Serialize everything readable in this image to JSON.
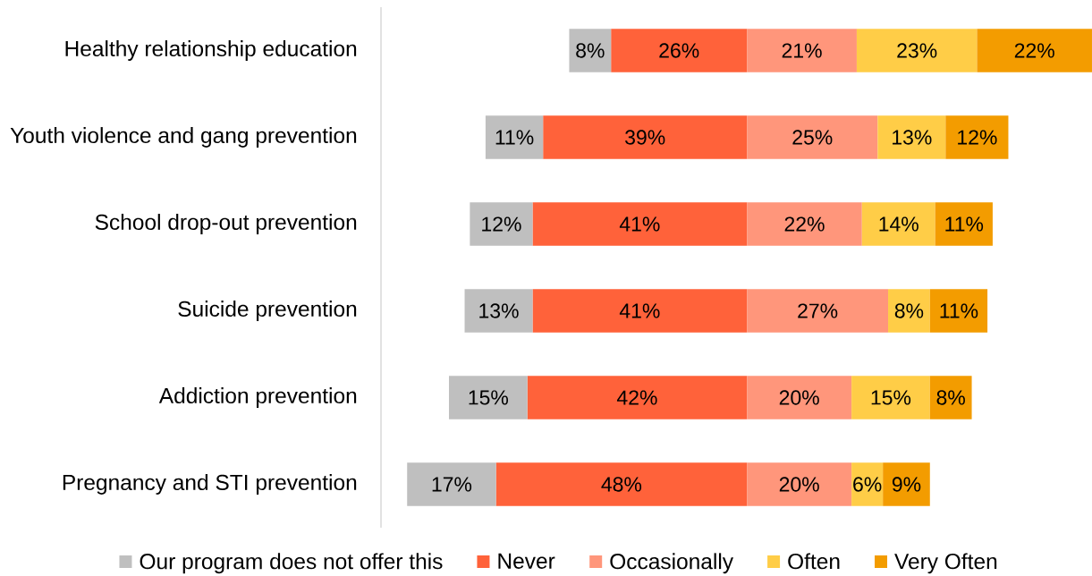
{
  "chart_data": [
    {
      "type": "bar",
      "orientation": "horizontal",
      "stacked": true,
      "categories": [
        "Healthy relationship education",
        "Youth violence and gang prevention",
        "School drop-out prevention",
        "Suicide prevention",
        "Addiction prevention",
        "Pregnancy and STI prevention"
      ],
      "series": [
        {
          "name": "Never",
          "color": "#ff623a",
          "values": [
            26,
            39,
            41,
            41,
            42,
            48
          ],
          "value_labels": [
            "26%",
            "39%",
            "41%",
            "41%",
            "42%",
            "48%"
          ]
        },
        {
          "name": "Our program does not offer this",
          "color": "#bfbfbf",
          "values": [
            8,
            11,
            12,
            13,
            15,
            17
          ],
          "value_labels": [
            "8%",
            "11%",
            "12%",
            "13%",
            "15%",
            "17%"
          ]
        }
      ],
      "xlim": [
        70,
        0
      ],
      "tick_labels": "y",
      "legend": "bottom"
    },
    {
      "type": "bar",
      "orientation": "horizontal",
      "stacked": true,
      "categories": [
        null,
        null,
        null,
        null,
        null,
        null
      ],
      "series": [
        {
          "name": "Occasionally",
          "color": "#ff967b",
          "values": [
            21,
            25,
            22,
            27,
            20,
            20
          ],
          "value_labels": [
            "21%",
            "25%",
            "22%",
            "27%",
            "20%",
            "20%"
          ]
        },
        {
          "name": "Often",
          "color": "#ffcd47",
          "values": [
            23,
            13,
            14,
            8,
            15,
            6
          ],
          "value_labels": [
            "23%",
            "13%",
            "14%",
            "8%",
            "15%",
            "6%"
          ]
        },
        {
          "name": "Very Often",
          "color": "#f39c00",
          "values": [
            22,
            12,
            11,
            11,
            8,
            9
          ],
          "value_labels": [
            "22%",
            "12%",
            "11%",
            "11%",
            "8%",
            "9%"
          ]
        }
      ],
      "xlim": [
        0,
        66
      ],
      "tick_labels": false,
      "legend": "bottom"
    }
  ]
}
